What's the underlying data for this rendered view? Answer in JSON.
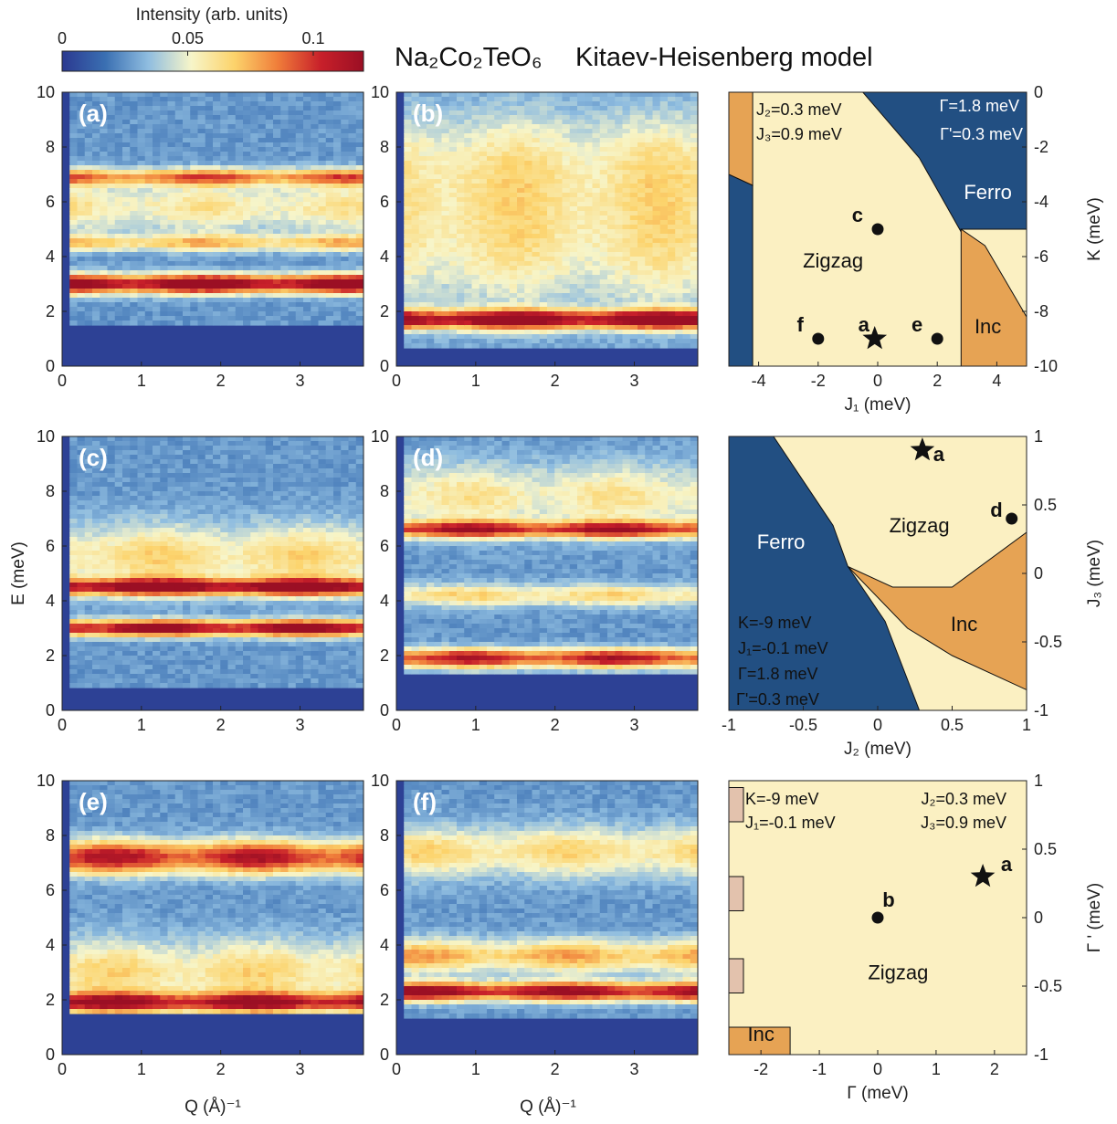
{
  "header": {
    "title_left": "Na₂Co₂TeO₆",
    "title_right": "Kitaev-Heisenberg model"
  },
  "colorbar": {
    "label": "Intensity (arb. units)",
    "ticks": [
      "0",
      "0.05",
      "0.1"
    ],
    "tick_values": [
      0,
      0.05,
      0.1
    ],
    "range": [
      0,
      0.12
    ],
    "colormap": [
      "#2b3990",
      "#3a6fb2",
      "#8fbde0",
      "#f7f5c9",
      "#fcd36b",
      "#f07e3a",
      "#c8202a",
      "#9b0f24"
    ]
  },
  "spectra": {
    "xlabel": "Q (Å)⁻¹",
    "ylabel": "E (meV)",
    "xlim": [
      0,
      3.8
    ],
    "ylim": [
      0,
      10
    ],
    "xticks": [
      "0",
      "1",
      "2",
      "3"
    ],
    "yticks": [
      "0",
      "2",
      "4",
      "6",
      "8",
      "10"
    ],
    "panels": [
      {
        "label": "(a)",
        "bands": [
          {
            "e": 3.0,
            "w": 0.35,
            "i": 0.95
          },
          {
            "e": 4.5,
            "w": 0.3,
            "i": 0.4
          },
          {
            "e": 6.9,
            "w": 0.3,
            "i": 0.55
          },
          {
            "e": 5.8,
            "w": 0.9,
            "i": 0.3
          }
        ],
        "gap": 1.5
      },
      {
        "label": "(b)",
        "bands": [
          {
            "e": 1.7,
            "w": 0.35,
            "i": 0.9
          },
          {
            "e": 4.5,
            "w": 2.5,
            "i": 0.3
          },
          {
            "e": 7.5,
            "w": 2.0,
            "i": 0.25
          }
        ],
        "gap": 0.6
      },
      {
        "label": "(c)",
        "bands": [
          {
            "e": 3.0,
            "w": 0.3,
            "i": 0.9
          },
          {
            "e": 4.5,
            "w": 0.3,
            "i": 0.85
          },
          {
            "e": 5.6,
            "w": 1.2,
            "i": 0.35
          }
        ],
        "gap": 0.8
      },
      {
        "label": "(d)",
        "bands": [
          {
            "e": 1.9,
            "w": 0.35,
            "i": 0.75
          },
          {
            "e": 4.2,
            "w": 0.4,
            "i": 0.35
          },
          {
            "e": 6.6,
            "w": 0.3,
            "i": 0.7
          },
          {
            "e": 7.8,
            "w": 1.2,
            "i": 0.3
          }
        ],
        "gap": 1.3
      },
      {
        "label": "(e)",
        "bands": [
          {
            "e": 1.9,
            "w": 0.35,
            "i": 0.75
          },
          {
            "e": 3.0,
            "w": 1.2,
            "i": 0.35
          },
          {
            "e": 7.2,
            "w": 0.6,
            "i": 0.75
          }
        ],
        "gap": 1.5
      },
      {
        "label": "(f)",
        "bands": [
          {
            "e": 2.3,
            "w": 0.35,
            "i": 0.85
          },
          {
            "e": 3.6,
            "w": 0.6,
            "i": 0.45
          },
          {
            "e": 7.4,
            "w": 0.9,
            "i": 0.35
          }
        ],
        "gap": 1.3
      }
    ]
  },
  "chart_data": [
    {
      "type": "heatmap",
      "panels": [
        "(a)",
        "(b)",
        "(c)",
        "(d)",
        "(e)",
        "(f)"
      ],
      "xlabel": "Q (Å)⁻¹",
      "ylabel": "E (meV)",
      "xlim": [
        0,
        3.8
      ],
      "ylim": [
        0,
        10
      ],
      "colorbar_label": "Intensity (arb. units)",
      "colorbar_range": [
        0,
        0.12
      ]
    },
    {
      "type": "phase-diagram",
      "xlabel": "J₁ (meV)",
      "ylabel": "K (meV)",
      "xlim": [
        -5,
        5
      ],
      "ylim": [
        -10,
        0
      ],
      "xticks": [
        "-4",
        "-2",
        "0",
        "2",
        "4"
      ],
      "yticks": [
        "0",
        "-2",
        "-4",
        "-6",
        "-8",
        "-10"
      ],
      "notes": [
        "J₂=0.3 meV",
        "J₃=0.9 meV",
        "Γ=1.8 meV",
        "Γ'=0.3 meV"
      ],
      "regions": [
        {
          "name": "Zigzag",
          "color": "#fbf0c2",
          "label": "Zigzag",
          "label_at": [
            -1.5,
            -6.4
          ]
        },
        {
          "name": "Ferro",
          "color": "#224f82",
          "label": "Ferro",
          "label_at": [
            3.7,
            -3.9
          ]
        },
        {
          "name": "Inc",
          "color": "#e6a354",
          "label": "Inc",
          "label_at": [
            3.7,
            -8.8
          ]
        }
      ],
      "points": [
        {
          "label": "c",
          "x": 0,
          "y": -5,
          "marker": "dot"
        },
        {
          "label": "f",
          "x": -2,
          "y": -9,
          "marker": "dot"
        },
        {
          "label": "a",
          "x": -0.1,
          "y": -9,
          "marker": "star"
        },
        {
          "label": "e",
          "x": 2,
          "y": -9,
          "marker": "dot"
        }
      ]
    },
    {
      "type": "phase-diagram",
      "xlabel": "J₂ (meV)",
      "ylabel": "J₃ (meV)",
      "xlim": [
        -1,
        1
      ],
      "ylim": [
        -1,
        1
      ],
      "xticks": [
        "-1",
        "-0.5",
        "0",
        "0.5",
        "1"
      ],
      "yticks": [
        "1",
        "0.5",
        "0",
        "-0.5",
        "-1"
      ],
      "notes": [
        "K=-9 meV",
        "J₁=-0.1 meV",
        "Γ=1.8 meV",
        "Γ'=0.3 meV"
      ],
      "regions": [
        {
          "name": "Zigzag",
          "color": "#fbf0c2",
          "label": "Zigzag",
          "label_at": [
            0.28,
            0.3
          ]
        },
        {
          "name": "Ferro",
          "color": "#224f82",
          "label": "Ferro",
          "label_at": [
            -0.65,
            0.18
          ]
        },
        {
          "name": "Inc",
          "color": "#e6a354",
          "label": "Inc",
          "label_at": [
            0.58,
            -0.42
          ]
        }
      ],
      "points": [
        {
          "label": "a",
          "x": 0.3,
          "y": 0.9,
          "marker": "star"
        },
        {
          "label": "d",
          "x": 0.9,
          "y": 0.4,
          "marker": "dot"
        }
      ]
    },
    {
      "type": "phase-diagram",
      "xlabel": "Γ (meV)",
      "ylabel": "Γ ' (meV)",
      "xlim": [
        -2.55,
        2.55
      ],
      "ylim": [
        -1,
        1
      ],
      "xticks": [
        "-2",
        "-1",
        "0",
        "1",
        "2"
      ],
      "yticks": [
        "1",
        "0.5",
        "0",
        "-0.5",
        "-1"
      ],
      "notes": [
        "K=-9 meV",
        "J₁=-0.1 meV",
        "J₂=0.3 meV",
        "J₃=0.9 meV"
      ],
      "regions": [
        {
          "name": "Zigzag",
          "color": "#fbf0c2",
          "label": "Zigzag",
          "label_at": [
            0.35,
            -0.45
          ]
        },
        {
          "name": "Inc",
          "color": "#e6a354",
          "label": "Inc",
          "label_at": [
            -2.0,
            -0.9
          ]
        }
      ],
      "points": [
        {
          "label": "b",
          "x": 0,
          "y": 0,
          "marker": "dot"
        },
        {
          "label": "a",
          "x": 1.8,
          "y": 0.3,
          "marker": "star"
        }
      ]
    }
  ]
}
